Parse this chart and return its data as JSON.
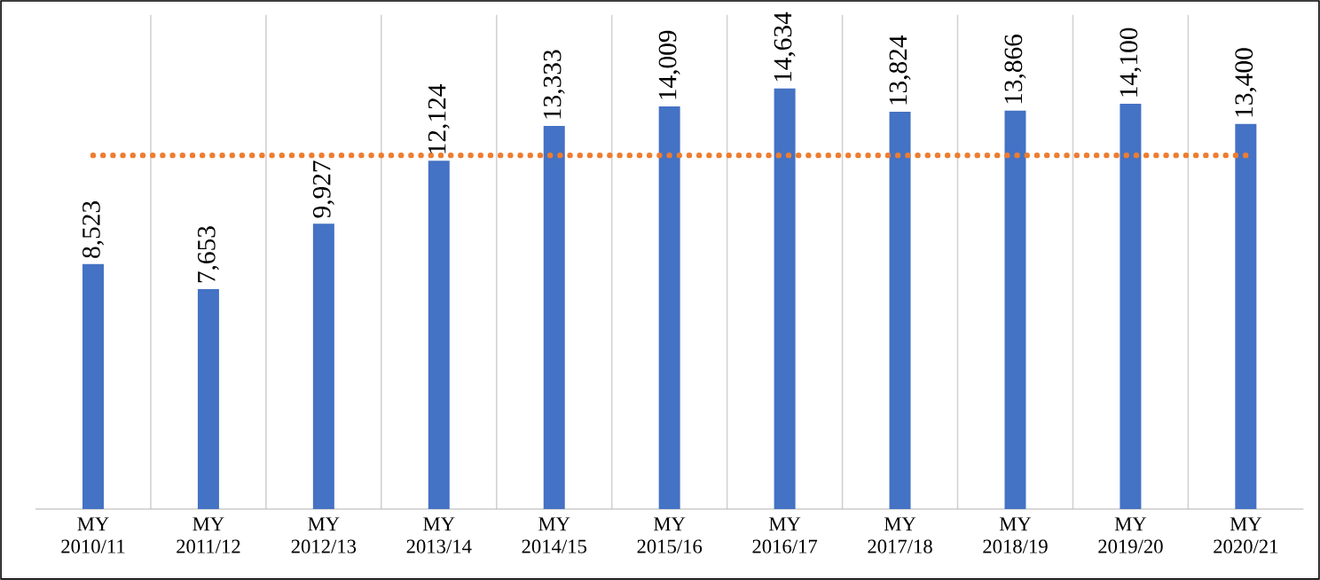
{
  "chart_data": {
    "type": "bar",
    "categories": [
      "MY 2010/11",
      "MY 2011/12",
      "MY 2012/13",
      "MY 2013/14",
      "MY 2014/15",
      "MY 2015/16",
      "MY 2016/17",
      "MY 2017/18",
      "MY 2018/19",
      "MY 2019/20",
      "MY 2020/21"
    ],
    "values": [
      8523,
      7653,
      9927,
      12124,
      13333,
      14009,
      14634,
      13824,
      13866,
      14100,
      13400
    ],
    "value_labels": [
      "8,523",
      "7,653",
      "9,927",
      "12,124",
      "13,333",
      "14,009",
      "14,634",
      "13,824",
      "13,866",
      "14,100",
      "13,400"
    ],
    "color": "#4472c4",
    "ylim": [
      0,
      17200
    ],
    "tick_labels": "x",
    "grid": "x",
    "ref_lines": [
      {
        "axis": "y",
        "value": 12308,
        "color": "#ed7d31",
        "line_style": "dotted"
      }
    ]
  }
}
